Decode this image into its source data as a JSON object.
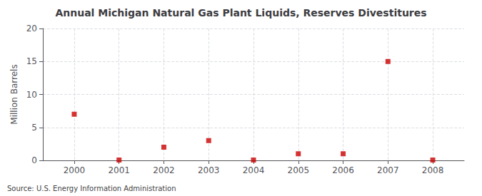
{
  "chart_data": {
    "type": "scatter",
    "title": "Annual Michigan Natural Gas Plant Liquids, Reserves Divestitures",
    "ylabel": "Million Barrels",
    "annotation": "Source: U.S. Energy Information Administration",
    "x": [
      2000,
      2001,
      2002,
      2003,
      2004,
      2005,
      2006,
      2007,
      2008
    ],
    "values": [
      7.0,
      0.05,
      2.0,
      3.0,
      0.05,
      1.0,
      1.0,
      15.0,
      0.05
    ],
    "color": "#cc0000",
    "marker": "square",
    "xlim": [
      1999.3,
      2008.7
    ],
    "xticks": [
      2000,
      2001,
      2002,
      2003,
      2004,
      2005,
      2006,
      2007,
      2008
    ],
    "ylim": [
      0,
      20
    ],
    "yticks": [
      0,
      5,
      10,
      15,
      20
    ],
    "grid": true
  }
}
